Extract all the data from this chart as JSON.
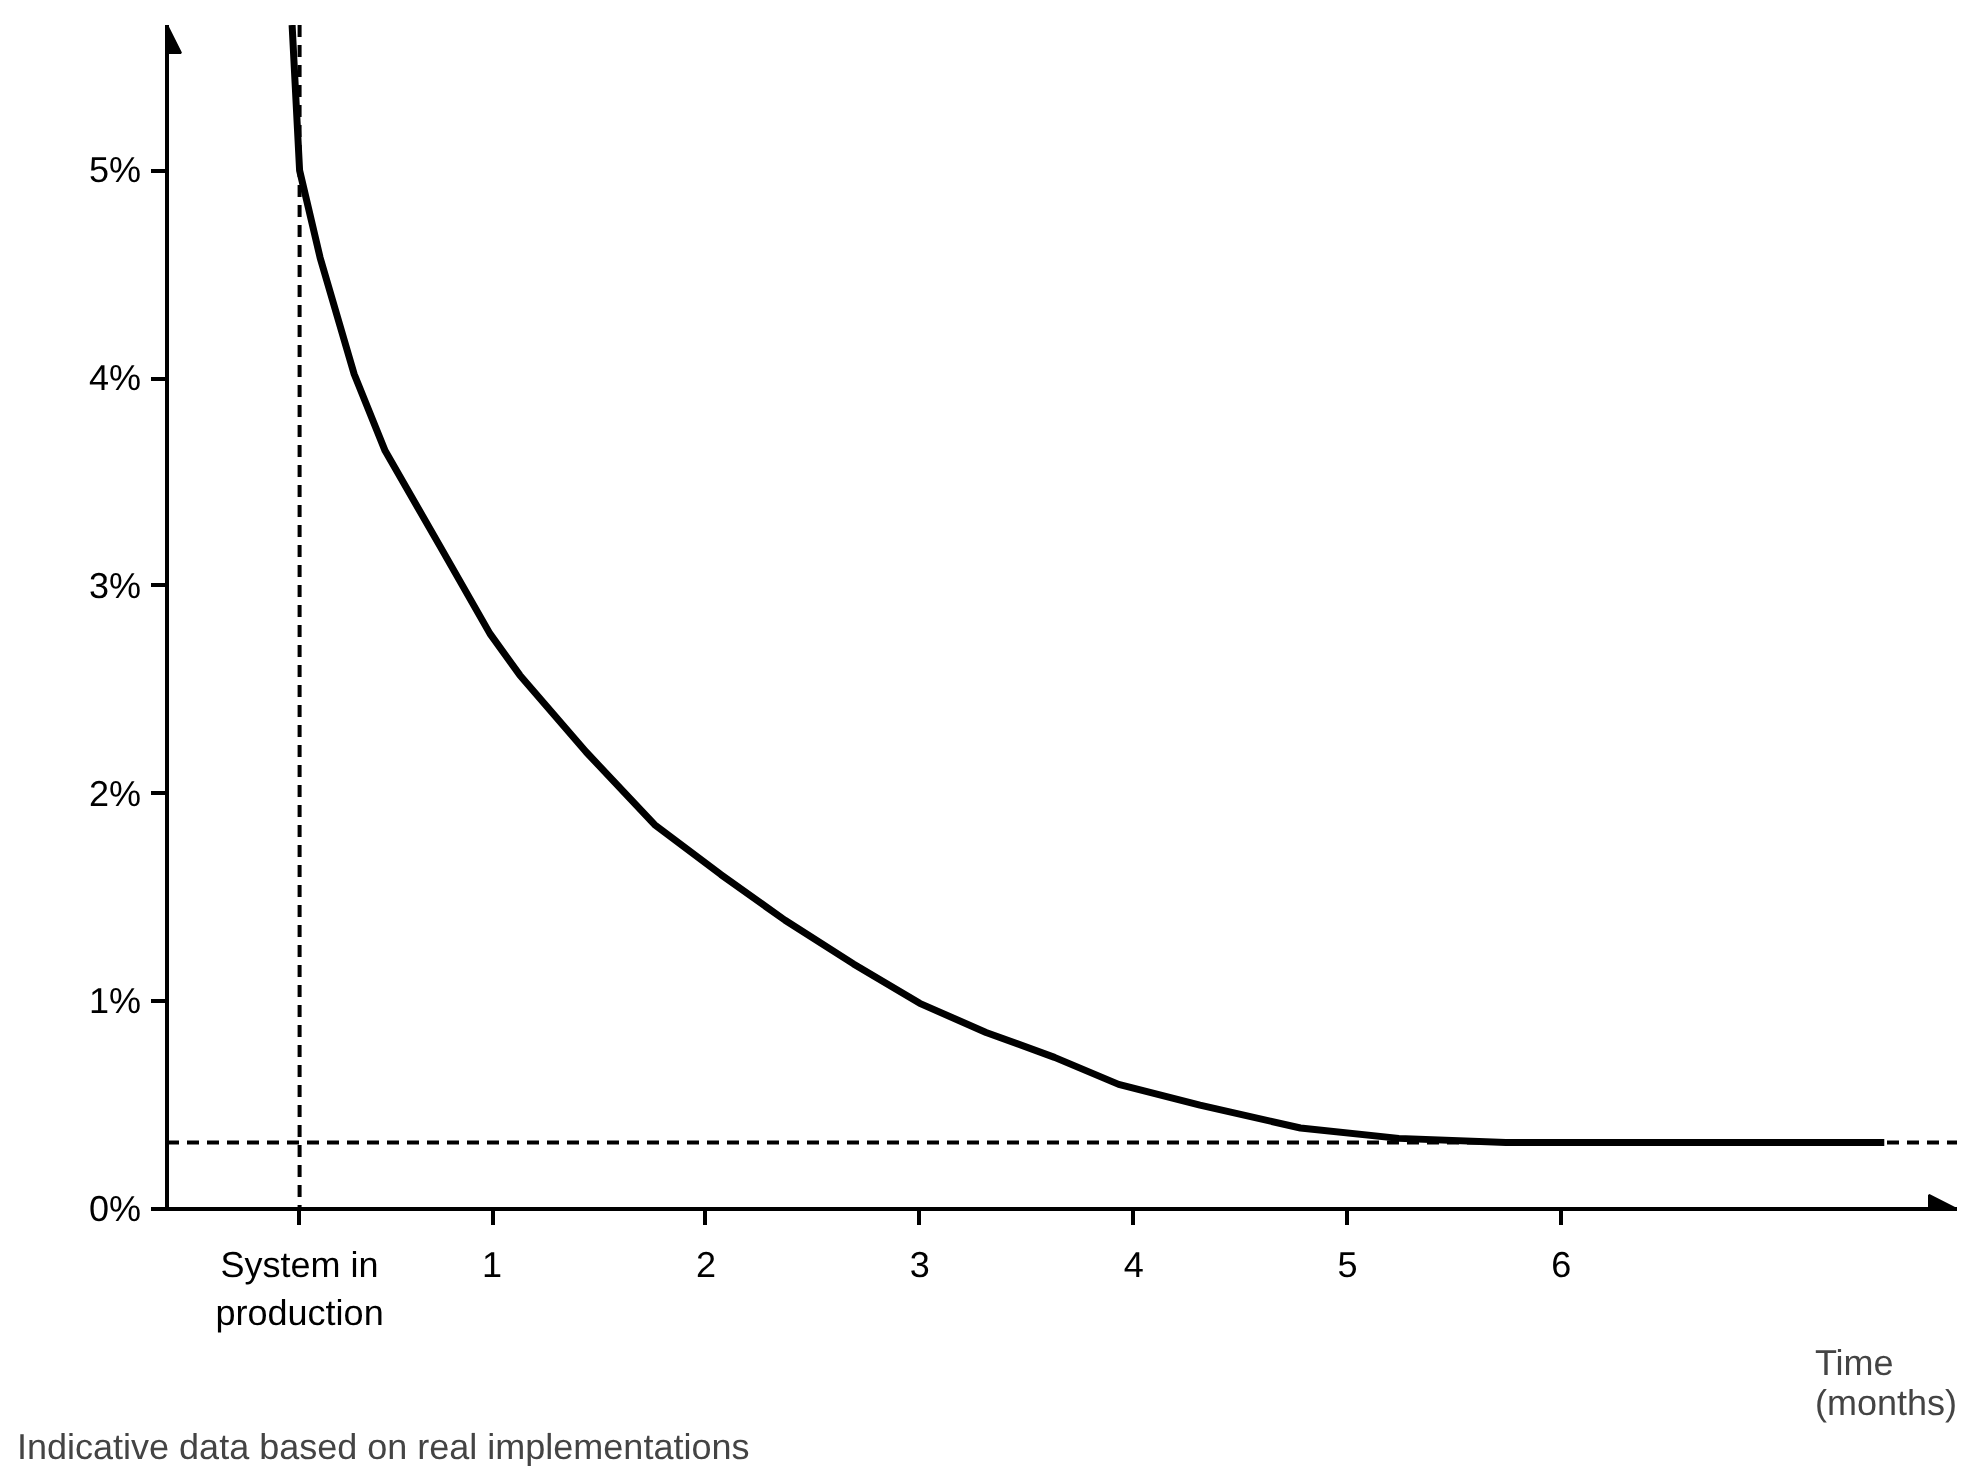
{
  "chart_data": {
    "type": "line",
    "xlabel": "Time\n(months)",
    "annotations": [
      "Indicative data based on real implementations"
    ],
    "x": [
      0.065,
      0.1,
      0.196,
      0.355,
      0.5,
      0.757,
      0.99,
      1.13,
      1.44,
      1.76,
      2.07,
      2.37,
      2.69,
      3.0,
      3.31,
      3.63,
      3.93,
      4.31,
      4.78,
      5.24,
      5.74,
      7.51
    ],
    "series": [
      {
        "color": "#000000",
        "values": [
          5.7,
          5.0,
          4.58,
          4.02,
          3.65,
          3.19,
          2.77,
          2.57,
          2.2,
          1.85,
          1.61,
          1.39,
          1.18,
          0.99,
          0.85,
          0.73,
          0.6,
          0.5,
          0.39,
          0.34,
          0.32,
          0.32
        ]
      }
    ],
    "xlim": [
      -0.52,
      7.85
    ],
    "ylim": [
      0,
      5.7
    ],
    "xticks": [
      {
        "value": 0.1,
        "label": "System in\nproduction"
      },
      1,
      2,
      3,
      4,
      5,
      6
    ],
    "yticks": [
      {
        "value": 0,
        "label": "0%"
      },
      {
        "value": 1,
        "label": "1%"
      },
      {
        "value": 2,
        "label": "2%"
      },
      {
        "value": 3,
        "label": "3%"
      },
      {
        "value": 4,
        "label": "4%"
      },
      {
        "value": 5,
        "label": "5%"
      }
    ],
    "ref_lines": [
      {
        "axis": "y",
        "value": 0.32,
        "line_style": "dashed"
      },
      {
        "axis": "x",
        "value": 0.1,
        "line_style": "dashed"
      }
    ],
    "grid": false,
    "marker": "none",
    "line_style": "solid"
  }
}
